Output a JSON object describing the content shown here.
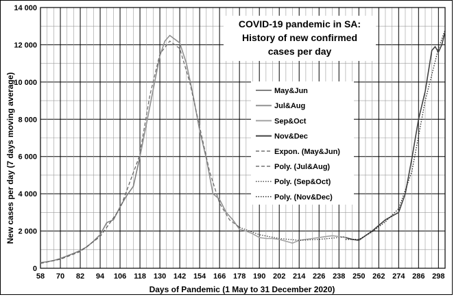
{
  "chart_data": {
    "type": "line",
    "title_lines": [
      "COVID-19 pandemic in SA:",
      "History of new confirmed",
      "cases per day"
    ],
    "xlabel": "Days of Pandemic (1 May to 31 December 2020)",
    "ylabel": "New cases per day (7 days moving average)",
    "xlim": [
      58,
      302
    ],
    "ylim": [
      0,
      14000
    ],
    "x_ticks": [
      58,
      70,
      82,
      94,
      106,
      118,
      130,
      142,
      154,
      166,
      178,
      190,
      202,
      214,
      226,
      238,
      250,
      262,
      274,
      286,
      298
    ],
    "y_ticks": [
      0,
      2000,
      4000,
      6000,
      8000,
      10000,
      12000,
      14000
    ],
    "y_tick_labels": [
      "0",
      "2 000",
      "4 000",
      "6 000",
      "8 000",
      "10 000",
      "12 000",
      "14 000"
    ],
    "grid": true,
    "legend_position": "center-right",
    "series": [
      {
        "name": "May&Jun",
        "style": "solid",
        "color": "#808080",
        "x": [
          58,
          62,
          66,
          70,
          74,
          78,
          82,
          86,
          90,
          94,
          98,
          102,
          106,
          110,
          114,
          118
        ],
        "y": [
          300,
          350,
          420,
          520,
          660,
          800,
          950,
          1150,
          1450,
          1800,
          2450,
          2600,
          3300,
          3900,
          4400,
          6000
        ]
      },
      {
        "name": "Jul&Aug",
        "style": "solid",
        "color": "#909090",
        "x": [
          118,
          122,
          126,
          130,
          133,
          136,
          139,
          142,
          146,
          150,
          154,
          158,
          162,
          166,
          170,
          174,
          178
        ],
        "y": [
          6000,
          7800,
          9600,
          11400,
          12200,
          12500,
          12300,
          12100,
          11000,
          9300,
          7400,
          5900,
          4000,
          3700,
          3000,
          2600,
          2100
        ]
      },
      {
        "name": "Sep&Oct",
        "style": "solid",
        "color": "#a0a0a0",
        "x": [
          178,
          182,
          186,
          190,
          194,
          198,
          202,
          206,
          210,
          214,
          218,
          222,
          226,
          230,
          234,
          238,
          242
        ],
        "y": [
          2100,
          2000,
          1850,
          1650,
          1600,
          1600,
          1550,
          1450,
          1350,
          1500,
          1550,
          1600,
          1650,
          1700,
          1750,
          1700,
          1650
        ]
      },
      {
        "name": "Nov&Dec",
        "style": "solid",
        "color": "#404040",
        "x": [
          242,
          246,
          250,
          254,
          258,
          262,
          266,
          270,
          274,
          278,
          282,
          286,
          290,
          294,
          296,
          298,
          300,
          302
        ],
        "y": [
          1650,
          1550,
          1500,
          1750,
          2000,
          2300,
          2600,
          2800,
          3000,
          4000,
          5900,
          8000,
          9500,
          11700,
          11900,
          11600,
          12000,
          12700
        ]
      },
      {
        "name": "Expon. (May&Jun)",
        "style": "dashed",
        "color": "#606060",
        "x": [
          58,
          70,
          82,
          94,
          106,
          118
        ],
        "y": [
          260,
          480,
          900,
          1700,
          3200,
          6100
        ]
      },
      {
        "name": "Poly. (Jul&Aug)",
        "style": "dashed",
        "color": "#707070",
        "x": [
          118,
          124,
          130,
          136,
          142,
          148,
          154,
          160,
          166,
          172,
          178
        ],
        "y": [
          6200,
          9300,
          11500,
          12200,
          11800,
          10000,
          7600,
          5200,
          3500,
          2600,
          2200
        ]
      },
      {
        "name": "Poly. (Sep&Oct)",
        "style": "dotted",
        "color": "#404040",
        "x": [
          178,
          190,
          202,
          214,
          226,
          238,
          242
        ],
        "y": [
          2200,
          1800,
          1600,
          1500,
          1550,
          1650,
          1700
        ]
      },
      {
        "name": "Poly. (Nov&Dec)",
        "style": "dotted",
        "color": "#202020",
        "x": [
          242,
          250,
          258,
          266,
          274,
          282,
          290,
          298,
          302
        ],
        "y": [
          1550,
          1550,
          1950,
          2500,
          3200,
          5200,
          9000,
          11800,
          12800
        ]
      }
    ]
  }
}
